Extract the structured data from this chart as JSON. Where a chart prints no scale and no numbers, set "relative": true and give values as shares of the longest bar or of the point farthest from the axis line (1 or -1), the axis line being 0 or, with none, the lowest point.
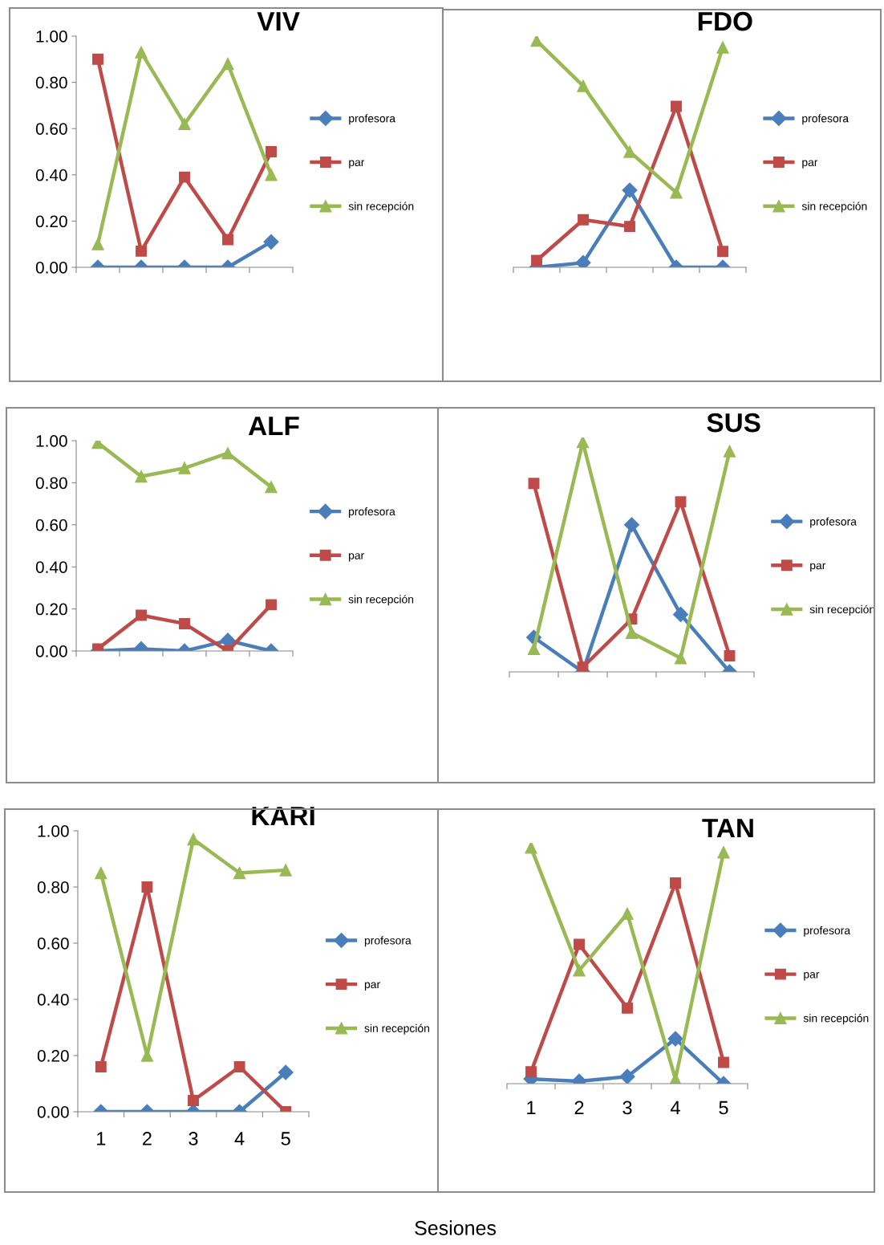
{
  "chart_data": [
    {
      "type": "line",
      "title": "VIV",
      "categories": [
        null,
        null,
        null,
        null,
        null
      ],
      "ylim": [
        0,
        1
      ],
      "yticks": [
        {
          "value": 0,
          "label": "0.00"
        },
        {
          "value": 0.2,
          "label": "0.20"
        },
        {
          "value": 0.4,
          "label": "0.40"
        },
        {
          "value": 0.6,
          "label": "0.60"
        },
        {
          "value": 0.8,
          "label": "0.80"
        },
        {
          "value": 1,
          "label": "1.00"
        }
      ],
      "tick_labels": "y",
      "legend": "right",
      "grid": false,
      "line_style": "solid",
      "series": [
        {
          "name": "profesora",
          "color": "#4a7ebb",
          "marker": "diamond",
          "values": [
            0,
            0,
            0,
            0,
            0.11
          ]
        },
        {
          "name": "par",
          "color": "#be4b48",
          "marker": "square",
          "values": [
            0.9,
            0.07,
            0.39,
            0.12,
            0.5
          ]
        },
        {
          "name": "sin recepción",
          "color": "#98b954",
          "marker": "triangle",
          "values": [
            0.1,
            0.93,
            0.62,
            0.88,
            0.4
          ]
        }
      ]
    },
    {
      "type": "line",
      "title": "FDO",
      "categories": [
        null,
        null,
        null,
        null,
        null
      ],
      "relative": true,
      "tick_labels": false,
      "legend": "right",
      "grid": false,
      "line_style": "solid",
      "series": [
        {
          "name": "profesora",
          "color": "#4a7ebb",
          "marker": "diamond",
          "values": [
            0,
            0.02,
            0.34,
            0,
            0
          ]
        },
        {
          "name": "par",
          "color": "#be4b48",
          "marker": "square",
          "values": [
            0.03,
            0.21,
            0.18,
            0.71,
            0.07
          ]
        },
        {
          "name": "sin recepción",
          "color": "#98b954",
          "marker": "triangle",
          "values": [
            1,
            0.8,
            0.51,
            0.33,
            0.97
          ]
        }
      ]
    },
    {
      "type": "line",
      "title": "ALF",
      "categories": [
        null,
        null,
        null,
        null,
        null
      ],
      "ylim": [
        0,
        1
      ],
      "yticks": [
        {
          "value": 0,
          "label": "0.00"
        },
        {
          "value": 0.2,
          "label": "0.20"
        },
        {
          "value": 0.4,
          "label": "0.40"
        },
        {
          "value": 0.6,
          "label": "0.60"
        },
        {
          "value": 0.8,
          "label": "0.80"
        },
        {
          "value": 1,
          "label": "1.00"
        }
      ],
      "tick_labels": "y",
      "legend": "right",
      "grid": false,
      "line_style": "solid",
      "series": [
        {
          "name": "profesora",
          "color": "#4a7ebb",
          "marker": "diamond",
          "values": [
            0,
            0.01,
            0,
            0.05,
            0
          ]
        },
        {
          "name": "par",
          "color": "#be4b48",
          "marker": "square",
          "values": [
            0.01,
            0.17,
            0.13,
            0,
            0.22
          ]
        },
        {
          "name": "sin recepción",
          "color": "#98b954",
          "marker": "triangle",
          "values": [
            0.99,
            0.83,
            0.87,
            0.94,
            0.78
          ]
        }
      ]
    },
    {
      "type": "line",
      "title": "SUS",
      "categories": [
        null,
        null,
        null,
        null,
        null
      ],
      "relative": true,
      "tick_labels": false,
      "legend": "right",
      "grid": false,
      "line_style": "solid",
      "series": [
        {
          "name": "profesora",
          "color": "#4a7ebb",
          "marker": "diamond",
          "values": [
            0.15,
            0,
            0.64,
            0.25,
            0
          ]
        },
        {
          "name": "par",
          "color": "#be4b48",
          "marker": "square",
          "values": [
            0.82,
            0.02,
            0.23,
            0.74,
            0.07
          ]
        },
        {
          "name": "sin recepción",
          "color": "#98b954",
          "marker": "triangle",
          "values": [
            0.1,
            1,
            0.17,
            0.06,
            0.96
          ]
        }
      ]
    },
    {
      "type": "line",
      "title": "KARI",
      "categories": [
        "1",
        "2",
        "3",
        "4",
        "5"
      ],
      "ylim": [
        0,
        1
      ],
      "yticks": [
        {
          "value": 0,
          "label": "0.00"
        },
        {
          "value": 0.2,
          "label": "0.20"
        },
        {
          "value": 0.4,
          "label": "0.40"
        },
        {
          "value": 0.6,
          "label": "0.60"
        },
        {
          "value": 0.8,
          "label": "0.80"
        },
        {
          "value": 1,
          "label": "1.00"
        }
      ],
      "legend": "right",
      "grid": false,
      "line_style": "solid",
      "series": [
        {
          "name": "profesora",
          "color": "#4a7ebb",
          "marker": "diamond",
          "values": [
            0,
            0,
            0,
            0,
            0.14
          ]
        },
        {
          "name": "par",
          "color": "#be4b48",
          "marker": "square",
          "values": [
            0.16,
            0.8,
            0.04,
            0.16,
            0
          ]
        },
        {
          "name": "sin recepción",
          "color": "#98b954",
          "marker": "triangle",
          "values": [
            0.85,
            0.2,
            0.97,
            0.85,
            0.86
          ]
        }
      ]
    },
    {
      "type": "line",
      "title": "TAN",
      "categories": [
        "1",
        "2",
        "3",
        "4",
        "5"
      ],
      "relative": true,
      "tick_labels": "x",
      "legend": "right",
      "grid": false,
      "line_style": "solid",
      "annotations": [
        "Sesiones"
      ],
      "series": [
        {
          "name": "profesora",
          "color": "#4a7ebb",
          "marker": "diamond",
          "values": [
            0.02,
            0.01,
            0.03,
            0.19,
            0
          ]
        },
        {
          "name": "par",
          "color": "#be4b48",
          "marker": "square",
          "values": [
            0.05,
            0.59,
            0.32,
            0.85,
            0.09
          ]
        },
        {
          "name": "sin recepción",
          "color": "#98b954",
          "marker": "triangle",
          "values": [
            1,
            0.48,
            0.72,
            0.02,
            0.98
          ]
        }
      ]
    }
  ]
}
